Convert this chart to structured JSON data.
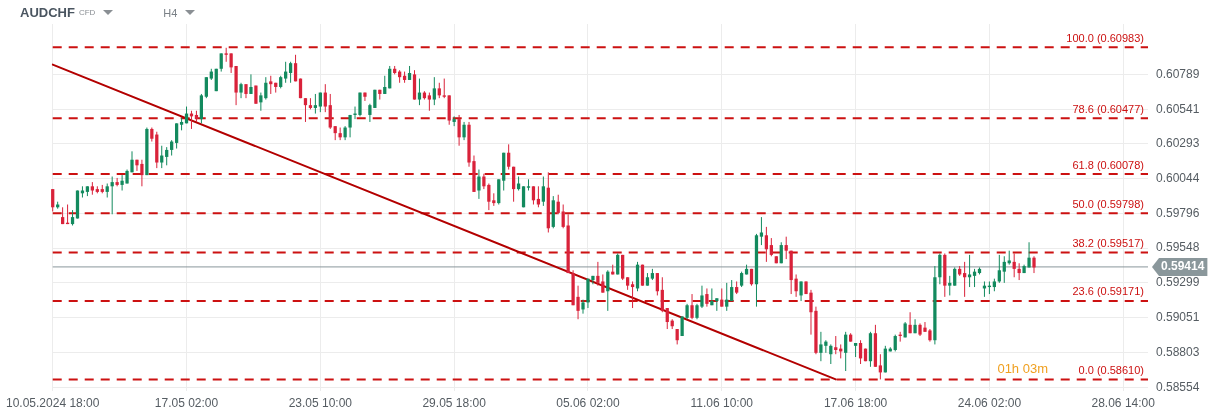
{
  "chart_data": {
    "type": "candlestick",
    "title": "AUDCHF",
    "subtitle": "CFD",
    "annotations": [
      "H4",
      "01h 03m"
    ],
    "categories": [
      "10.05.2024 18:00",
      null,
      null,
      null,
      null,
      null,
      null,
      null,
      null,
      null,
      null,
      null,
      null,
      null,
      null,
      null,
      null,
      null,
      null,
      null,
      null,
      null,
      null,
      null,
      null,
      null,
      null,
      "17.05 02:00",
      null,
      null,
      null,
      null,
      null,
      null,
      null,
      null,
      null,
      null,
      null,
      null,
      null,
      null,
      null,
      null,
      null,
      null,
      null,
      null,
      null,
      null,
      null,
      null,
      null,
      null,
      "23.05 10:00",
      null,
      null,
      null,
      null,
      null,
      null,
      null,
      null,
      null,
      null,
      null,
      null,
      null,
      null,
      null,
      null,
      null,
      null,
      null,
      null,
      null,
      null,
      null,
      null,
      null,
      null,
      "29.05 18:00",
      null,
      null,
      null,
      null,
      null,
      null,
      null,
      null,
      null,
      null,
      null,
      null,
      null,
      null,
      null,
      null,
      null,
      null,
      null,
      null,
      null,
      null,
      null,
      null,
      null,
      null,
      "05.06 02:00",
      null,
      null,
      null,
      null,
      null,
      null,
      null,
      null,
      null,
      null,
      null,
      null,
      null,
      null,
      null,
      null,
      null,
      null,
      null,
      null,
      null,
      null,
      null,
      null,
      null,
      null,
      "11.06 10:00",
      null,
      null,
      null,
      null,
      null,
      null,
      null,
      null,
      null,
      null,
      null,
      null,
      null,
      null,
      null,
      null,
      null,
      null,
      null,
      null,
      null,
      null,
      null,
      null,
      null,
      null,
      "17.06 18:00",
      null,
      null,
      null,
      null,
      null,
      null,
      null,
      null,
      null,
      null,
      null,
      null,
      null,
      null,
      null,
      null,
      null,
      null,
      null,
      null,
      null,
      null,
      null,
      null,
      null,
      null,
      "24.06 02:00",
      null,
      null,
      null,
      null,
      null,
      null,
      null,
      null,
      null,
      null,
      null,
      null,
      null,
      null,
      null,
      null,
      null,
      null,
      null,
      null,
      null,
      null,
      null,
      null,
      null,
      null,
      "28.06 14:00",
      null,
      null,
      null,
      null,
      null
    ],
    "ohlc": [
      [
        0.5997,
        0.5997,
        0.5981,
        0.5984
      ],
      [
        0.5984,
        0.5988,
        0.5983,
        0.5986
      ],
      [
        0.5977,
        0.5984,
        0.5972,
        0.5972
      ],
      [
        0.5973,
        0.5986,
        0.5972,
        0.5972
      ],
      [
        0.5972,
        0.5982,
        0.5971,
        0.5977
      ],
      [
        0.5976,
        0.5996,
        0.5976,
        0.5996
      ],
      [
        0.5994,
        0.5999,
        0.5991,
        0.5996
      ],
      [
        0.5995,
        0.5999,
        0.5992,
        0.5999
      ],
      [
        0.5999,
        0.6002,
        0.5993,
        0.5996
      ],
      [
        0.5997,
        0.5999,
        0.5994,
        0.5995
      ],
      [
        0.5997,
        0.6,
        0.5994,
        0.5995
      ],
      [
        0.5995,
        0.6001,
        0.5991,
        0.5999
      ],
      [
        0.5999,
        0.6006,
        0.5979,
        0.6002
      ],
      [
        0.6002,
        0.6005,
        0.5999,
        0.6
      ],
      [
        0.6,
        0.6007,
        0.5996,
        0.6003
      ],
      [
        0.6001,
        0.6011,
        0.6001,
        0.601
      ],
      [
        0.6009,
        0.6024,
        0.6009,
        0.6018
      ],
      [
        0.6018,
        0.6018,
        0.601,
        0.6014
      ],
      [
        0.6015,
        0.6018,
        0.5999,
        0.6007
      ],
      [
        0.6007,
        0.6041,
        0.6007,
        0.604
      ],
      [
        0.604,
        0.6041,
        0.6031,
        0.6033
      ],
      [
        0.6036,
        0.6038,
        0.6012,
        0.6016
      ],
      [
        0.6016,
        0.6028,
        0.6012,
        0.6021
      ],
      [
        0.602,
        0.6027,
        0.6014,
        0.6025
      ],
      [
        0.6025,
        0.6032,
        0.6021,
        0.6031
      ],
      [
        0.603,
        0.6044,
        0.6026,
        0.6044
      ],
      [
        0.6043,
        0.6048,
        0.6039,
        0.6045
      ],
      [
        0.6044,
        0.6056,
        0.6044,
        0.6051
      ],
      [
        0.6051,
        0.6053,
        0.604,
        0.6049
      ],
      [
        0.605,
        0.6053,
        0.6045,
        0.6047
      ],
      [
        0.6047,
        0.6065,
        0.6044,
        0.6064
      ],
      [
        0.6063,
        0.6077,
        0.6062,
        0.6077
      ],
      [
        0.6076,
        0.6083,
        0.6075,
        0.6081
      ],
      [
        0.6067,
        0.6083,
        0.6067,
        0.6083
      ],
      [
        0.6083,
        0.6094,
        0.6081,
        0.6094
      ],
      [
        0.6094,
        0.6098,
        0.6088,
        0.6093
      ],
      [
        0.6094,
        0.6094,
        0.608,
        0.6084
      ],
      [
        0.6085,
        0.6085,
        0.6057,
        0.6066
      ],
      [
        0.6066,
        0.6073,
        0.6062,
        0.6072
      ],
      [
        0.6072,
        0.6072,
        0.6062,
        0.6065
      ],
      [
        0.6065,
        0.6079,
        0.6065,
        0.607
      ],
      [
        0.6071,
        0.6071,
        0.6058,
        0.6058
      ],
      [
        0.6059,
        0.6066,
        0.6053,
        0.6064
      ],
      [
        0.6062,
        0.6077,
        0.6061,
        0.6073
      ],
      [
        0.6074,
        0.6078,
        0.6065,
        0.6072
      ],
      [
        0.6073,
        0.6073,
        0.6066,
        0.607
      ],
      [
        0.607,
        0.6078,
        0.6069,
        0.6077
      ],
      [
        0.6076,
        0.6088,
        0.6073,
        0.6081
      ],
      [
        0.608,
        0.6088,
        0.6073,
        0.6087
      ],
      [
        0.6087,
        0.6093,
        0.6074,
        0.6074
      ],
      [
        0.6076,
        0.6076,
        0.6062,
        0.6062
      ],
      [
        0.6062,
        0.6062,
        0.6045,
        0.6057
      ],
      [
        0.6057,
        0.6062,
        0.6054,
        0.6055
      ],
      [
        0.6055,
        0.6065,
        0.6051,
        0.6057
      ],
      [
        0.6056,
        0.6066,
        0.6052,
        0.6066
      ],
      [
        0.6066,
        0.6072,
        0.6052,
        0.6056
      ],
      [
        0.6057,
        0.6065,
        0.604,
        0.6041
      ],
      [
        0.6042,
        0.6042,
        0.6032,
        0.6037
      ],
      [
        0.6037,
        0.6041,
        0.6032,
        0.6034
      ],
      [
        0.6034,
        0.6042,
        0.6032,
        0.6041
      ],
      [
        0.6041,
        0.605,
        0.6034,
        0.605
      ],
      [
        0.605,
        0.6056,
        0.6047,
        0.6051
      ],
      [
        0.605,
        0.6066,
        0.6049,
        0.6066
      ],
      [
        0.6066,
        0.6066,
        0.606,
        0.6063
      ],
      [
        0.605,
        0.6058,
        0.6045,
        0.6057
      ],
      [
        0.6055,
        0.6068,
        0.6055,
        0.6068
      ],
      [
        0.6068,
        0.6068,
        0.6061,
        0.6065
      ],
      [
        0.6065,
        0.6078,
        0.6065,
        0.607
      ],
      [
        0.6069,
        0.6085,
        0.6069,
        0.6083
      ],
      [
        0.6083,
        0.6085,
        0.6079,
        0.608
      ],
      [
        0.6081,
        0.6082,
        0.6073,
        0.6077
      ],
      [
        0.6078,
        0.6081,
        0.6073,
        0.6075
      ],
      [
        0.6075,
        0.6085,
        0.6075,
        0.608
      ],
      [
        0.6079,
        0.6082,
        0.6061,
        0.6061
      ],
      [
        0.6061,
        0.6076,
        0.6057,
        0.6066
      ],
      [
        0.6066,
        0.6067,
        0.6061,
        0.6062
      ],
      [
        0.6064,
        0.6066,
        0.6053,
        0.6061
      ],
      [
        0.6061,
        0.6077,
        0.6057,
        0.6069
      ],
      [
        0.6069,
        0.6073,
        0.6062,
        0.6064
      ],
      [
        0.6064,
        0.6076,
        0.6062,
        0.6063
      ],
      [
        0.6064,
        0.6064,
        0.6043,
        0.6046
      ],
      [
        0.6045,
        0.6049,
        0.6042,
        0.6047
      ],
      [
        0.6047,
        0.605,
        0.6028,
        0.6034
      ],
      [
        0.6034,
        0.6045,
        0.6032,
        0.6043
      ],
      [
        0.6043,
        0.6045,
        0.6013,
        0.6016
      ],
      [
        0.6017,
        0.6021,
        0.5995,
        0.5995
      ],
      [
        0.5996,
        0.6011,
        0.599,
        0.6006
      ],
      [
        0.6006,
        0.6008,
        0.5997,
        0.5999
      ],
      [
        0.6,
        0.6001,
        0.5982,
        0.5988
      ],
      [
        0.5989,
        0.5994,
        0.5985,
        0.5987
      ],
      [
        0.5987,
        0.6004,
        0.5986,
        0.6004
      ],
      [
        0.6003,
        0.6023,
        0.5996,
        0.6023
      ],
      [
        0.6023,
        0.6029,
        0.6011,
        0.6013
      ],
      [
        0.6013,
        0.6013,
        0.5988,
        0.5997
      ],
      [
        0.5997,
        0.6006,
        0.5996,
        0.6001
      ],
      [
        0.5984,
        0.5999,
        0.5984,
        0.5999
      ],
      [
        0.5998,
        0.6004,
        0.5996,
        0.5999
      ],
      [
        0.5999,
        0.5999,
        0.5986,
        0.5989
      ],
      [
        0.599,
        0.5999,
        0.5984,
        0.5986
      ],
      [
        0.5988,
        0.6006,
        0.5985,
        0.5999
      ],
      [
        0.5998,
        0.6009,
        0.5966,
        0.5969
      ],
      [
        0.597,
        0.5992,
        0.5969,
        0.5989
      ],
      [
        0.5988,
        0.5993,
        0.5979,
        0.598
      ],
      [
        0.5981,
        0.5986,
        0.5969,
        0.597
      ],
      [
        0.5971,
        0.5979,
        0.5937,
        0.5937
      ],
      [
        0.5937,
        0.5939,
        0.5914,
        0.5914
      ],
      [
        0.592,
        0.5928,
        0.5904,
        0.591
      ],
      [
        0.5911,
        0.5918,
        0.5908,
        0.5916
      ],
      [
        0.5916,
        0.5933,
        0.5912,
        0.5933
      ],
      [
        0.5932,
        0.5935,
        0.5929,
        0.5935
      ],
      [
        0.5935,
        0.5945,
        0.5928,
        0.593
      ],
      [
        0.5931,
        0.5936,
        0.5923,
        0.5923
      ],
      [
        0.5924,
        0.5939,
        0.591,
        0.5938
      ],
      [
        0.5938,
        0.5943,
        0.5936,
        0.5936
      ],
      [
        0.5936,
        0.5951,
        0.5936,
        0.595
      ],
      [
        0.595,
        0.595,
        0.5932,
        0.5933
      ],
      [
        0.5934,
        0.5934,
        0.5925,
        0.5928
      ],
      [
        0.5929,
        0.5931,
        0.5912,
        0.5927
      ],
      [
        0.5926,
        0.5945,
        0.5924,
        0.5943
      ],
      [
        0.5943,
        0.5943,
        0.5928,
        0.5928
      ],
      [
        0.5928,
        0.5937,
        0.5928,
        0.5934
      ],
      [
        0.5933,
        0.594,
        0.5932,
        0.5937
      ],
      [
        0.5937,
        0.5937,
        0.5921,
        0.5924
      ],
      [
        0.5925,
        0.5934,
        0.5909,
        0.591
      ],
      [
        0.5912,
        0.5912,
        0.5897,
        0.5902
      ],
      [
        0.5903,
        0.5904,
        0.5897,
        0.5899
      ],
      [
        0.5897,
        0.5897,
        0.5886,
        0.5889
      ],
      [
        0.5892,
        0.5906,
        0.5892,
        0.5906
      ],
      [
        0.5905,
        0.5915,
        0.5904,
        0.5914
      ],
      [
        0.5914,
        0.5922,
        0.5904,
        0.5905
      ],
      [
        0.5905,
        0.5915,
        0.5904,
        0.5914
      ],
      [
        0.5913,
        0.5928,
        0.5912,
        0.5921
      ],
      [
        0.5922,
        0.5926,
        0.5913,
        0.5915
      ],
      [
        0.5914,
        0.5926,
        0.5914,
        0.5917
      ],
      [
        0.5917,
        0.5919,
        0.591,
        0.5919
      ],
      [
        0.5918,
        0.5926,
        0.5913,
        0.5913
      ],
      [
        0.5913,
        0.593,
        0.591,
        0.5918
      ],
      [
        0.5917,
        0.5932,
        0.5917,
        0.5927
      ],
      [
        0.5927,
        0.5931,
        0.5922,
        0.5923
      ],
      [
        0.5928,
        0.5938,
        0.5927,
        0.5937
      ],
      [
        0.5936,
        0.5943,
        0.5936,
        0.594
      ],
      [
        0.594,
        0.594,
        0.5928,
        0.5929
      ],
      [
        0.5929,
        0.5965,
        0.5913,
        0.5964
      ],
      [
        0.5963,
        0.5977,
        0.5957,
        0.5966
      ],
      [
        0.5964,
        0.597,
        0.5945,
        0.5954
      ],
      [
        0.5957,
        0.5962,
        0.5949,
        0.595
      ],
      [
        0.5949,
        0.5949,
        0.5944,
        0.5944
      ],
      [
        0.5944,
        0.5959,
        0.5944,
        0.5957
      ],
      [
        0.5957,
        0.5963,
        0.5947,
        0.5953
      ],
      [
        0.5953,
        0.5953,
        0.5922,
        0.5932
      ],
      [
        0.5933,
        0.5936,
        0.592,
        0.5924
      ],
      [
        0.5921,
        0.5931,
        0.5917,
        0.5931
      ],
      [
        0.5931,
        0.5931,
        0.5922,
        0.5922
      ],
      [
        0.5923,
        0.5925,
        0.5893,
        0.5909
      ],
      [
        0.591,
        0.5913,
        0.5879,
        0.588
      ],
      [
        0.588,
        0.5895,
        0.5874,
        0.5886
      ],
      [
        0.5885,
        0.5889,
        0.588,
        0.5888
      ],
      [
        0.5879,
        0.5886,
        0.5872,
        0.5885
      ],
      [
        0.5884,
        0.5892,
        0.5879,
        0.5882
      ],
      [
        0.5883,
        0.5886,
        0.5876,
        0.5881
      ],
      [
        0.588,
        0.5895,
        0.5867,
        0.5893
      ],
      [
        0.5893,
        0.5894,
        0.5888,
        0.5888
      ],
      [
        0.5885,
        0.5887,
        0.5877,
        0.5887
      ],
      [
        0.5887,
        0.5889,
        0.5872,
        0.5876
      ],
      [
        0.5883,
        0.5883,
        0.5874,
        0.5874
      ],
      [
        0.5874,
        0.5895,
        0.587,
        0.5894
      ],
      [
        0.5894,
        0.59,
        0.587,
        0.587
      ],
      [
        0.5871,
        0.5879,
        0.5861,
        0.5866
      ],
      [
        0.5866,
        0.5885,
        0.5866,
        0.5883
      ],
      [
        0.5881,
        0.5884,
        0.5881,
        0.5883
      ],
      [
        0.5882,
        0.5893,
        0.5881,
        0.5892
      ],
      [
        0.5893,
        0.5895,
        0.5888,
        0.5892
      ],
      [
        0.5891,
        0.5902,
        0.5891,
        0.5901
      ],
      [
        0.59,
        0.5909,
        0.5894,
        0.5894
      ],
      [
        0.5894,
        0.5904,
        0.5894,
        0.59
      ],
      [
        0.59,
        0.5901,
        0.5892,
        0.5893
      ],
      [
        0.5898,
        0.5902,
        0.5895,
        0.5895
      ],
      [
        0.5896,
        0.5897,
        0.5888,
        0.5889
      ],
      [
        0.5889,
        0.5942,
        0.5886,
        0.5934
      ],
      [
        0.5934,
        0.5951,
        0.5929,
        0.595
      ],
      [
        0.595,
        0.5951,
        0.592,
        0.5928
      ],
      [
        0.5928,
        0.5935,
        0.5921,
        0.593
      ],
      [
        0.5928,
        0.5941,
        0.5928,
        0.594
      ],
      [
        0.594,
        0.5942,
        0.5935,
        0.5936
      ],
      [
        0.5937,
        0.5945,
        0.592,
        0.5934
      ],
      [
        0.5934,
        0.595,
        0.5927,
        0.5936
      ],
      [
        0.5935,
        0.594,
        0.5927,
        0.5938
      ],
      [
        0.5937,
        0.5941,
        0.5936,
        0.594
      ],
      [
        0.5926,
        0.5931,
        0.592,
        0.5928
      ],
      [
        0.5927,
        0.5931,
        0.5922,
        0.5928
      ],
      [
        0.5927,
        0.5933,
        0.5924,
        0.5931
      ],
      [
        0.5931,
        0.595,
        0.593,
        0.5939
      ],
      [
        0.5938,
        0.5949,
        0.593,
        0.5945
      ],
      [
        0.5944,
        0.5953,
        0.5943,
        0.5946
      ],
      [
        0.5945,
        0.5951,
        0.5934,
        0.594
      ],
      [
        0.594,
        0.5944,
        0.5932,
        0.5937
      ],
      [
        0.5937,
        0.5943,
        0.5937,
        0.5942
      ],
      [
        0.5941,
        0.5959,
        0.5941,
        0.5948
      ],
      [
        0.5948,
        0.5949,
        0.5937,
        0.5941
      ],
      null,
      null,
      null,
      null,
      null,
      null,
      null,
      null,
      null,
      null,
      null,
      null,
      null,
      null,
      null,
      null,
      null,
      null,
      null,
      null,
      null,
      null,
      null
    ],
    "series": [
      {
        "type": "line",
        "color": "#b30000",
        "values": [
          0.6086,
          null,
          null,
          null,
          null,
          null,
          null,
          null,
          null,
          null,
          null,
          null,
          null,
          null,
          null,
          null,
          null,
          null,
          null,
          null,
          null,
          null,
          null,
          null,
          null,
          null,
          null,
          null,
          null,
          null,
          null,
          null,
          null,
          null,
          null,
          null,
          null,
          null,
          null,
          null,
          null,
          null,
          null,
          null,
          null,
          null,
          null,
          null,
          null,
          null,
          null,
          null,
          null,
          null,
          null,
          null,
          null,
          null,
          null,
          null,
          null,
          null,
          null,
          null,
          null,
          null,
          null,
          null,
          null,
          null,
          null,
          null,
          null,
          null,
          null,
          null,
          null,
          null,
          null,
          null,
          null,
          null,
          null,
          null,
          null,
          null,
          null,
          null,
          null,
          null,
          null,
          null,
          null,
          null,
          null,
          null,
          null,
          null,
          null,
          null,
          null,
          null,
          null,
          null,
          null,
          null,
          null,
          null,
          null,
          null,
          null,
          null,
          null,
          null,
          null,
          null,
          null,
          null,
          null,
          null,
          null,
          null,
          null,
          null,
          null,
          null,
          null,
          null,
          null,
          null,
          null,
          null,
          null,
          null,
          null,
          null,
          null,
          null,
          null,
          null,
          null,
          null,
          null,
          null,
          null,
          null,
          null,
          null,
          null,
          null,
          null,
          null,
          null,
          null,
          null,
          null,
          null,
          null,
          0.5861,
          null,
          null,
          null,
          null,
          null,
          null,
          null,
          null,
          null,
          null,
          null,
          null,
          null,
          null,
          null,
          null,
          null,
          null,
          null,
          null,
          null,
          null,
          null,
          null,
          null,
          null,
          null,
          null,
          null,
          null,
          null,
          null,
          null,
          null,
          null,
          null,
          null,
          null,
          null,
          null,
          null,
          null,
          null,
          null,
          null,
          null,
          null,
          null,
          null,
          null,
          null,
          null,
          null,
          null,
          null,
          null,
          null,
          null,
          null,
          null,
          null,
          null,
          null
        ]
      }
    ],
    "ylim": [
      0.5853,
      0.6115
    ],
    "yticks": [
      0.58554,
      0.58803,
      0.59051,
      0.59299,
      0.59548,
      0.59796,
      0.60044,
      0.60293,
      0.60541,
      0.60789
    ],
    "grid": true,
    "ref_lines": [
      {
        "axis": "y",
        "value": 0.60983,
        "label": "100.0 (0.60983)",
        "color": "#cc1111",
        "line_style": "dashed"
      },
      {
        "axis": "y",
        "value": 0.60477,
        "label": "78.6 (0.60477)",
        "color": "#cc1111",
        "line_style": "dashed"
      },
      {
        "axis": "y",
        "value": 0.60078,
        "label": "61.8 (0.60078)",
        "color": "#cc1111",
        "line_style": "dashed"
      },
      {
        "axis": "y",
        "value": 0.59798,
        "label": "50.0 (0.59798)",
        "color": "#cc1111",
        "line_style": "dashed"
      },
      {
        "axis": "y",
        "value": 0.59517,
        "label": "38.2 (0.59517)",
        "color": "#cc1111",
        "line_style": "dashed"
      },
      {
        "axis": "y",
        "value": 0.59171,
        "label": "23.6 (0.59171)",
        "color": "#cc1111",
        "line_style": "dashed"
      },
      {
        "axis": "y",
        "value": 0.5861,
        "label": "0.0 (0.58610)",
        "color": "#cc1111",
        "line_style": "dashed"
      },
      {
        "axis": "y",
        "value": 0.59414,
        "label": "0.59414",
        "color": "#8a979b",
        "line_style": "solid"
      }
    ]
  }
}
